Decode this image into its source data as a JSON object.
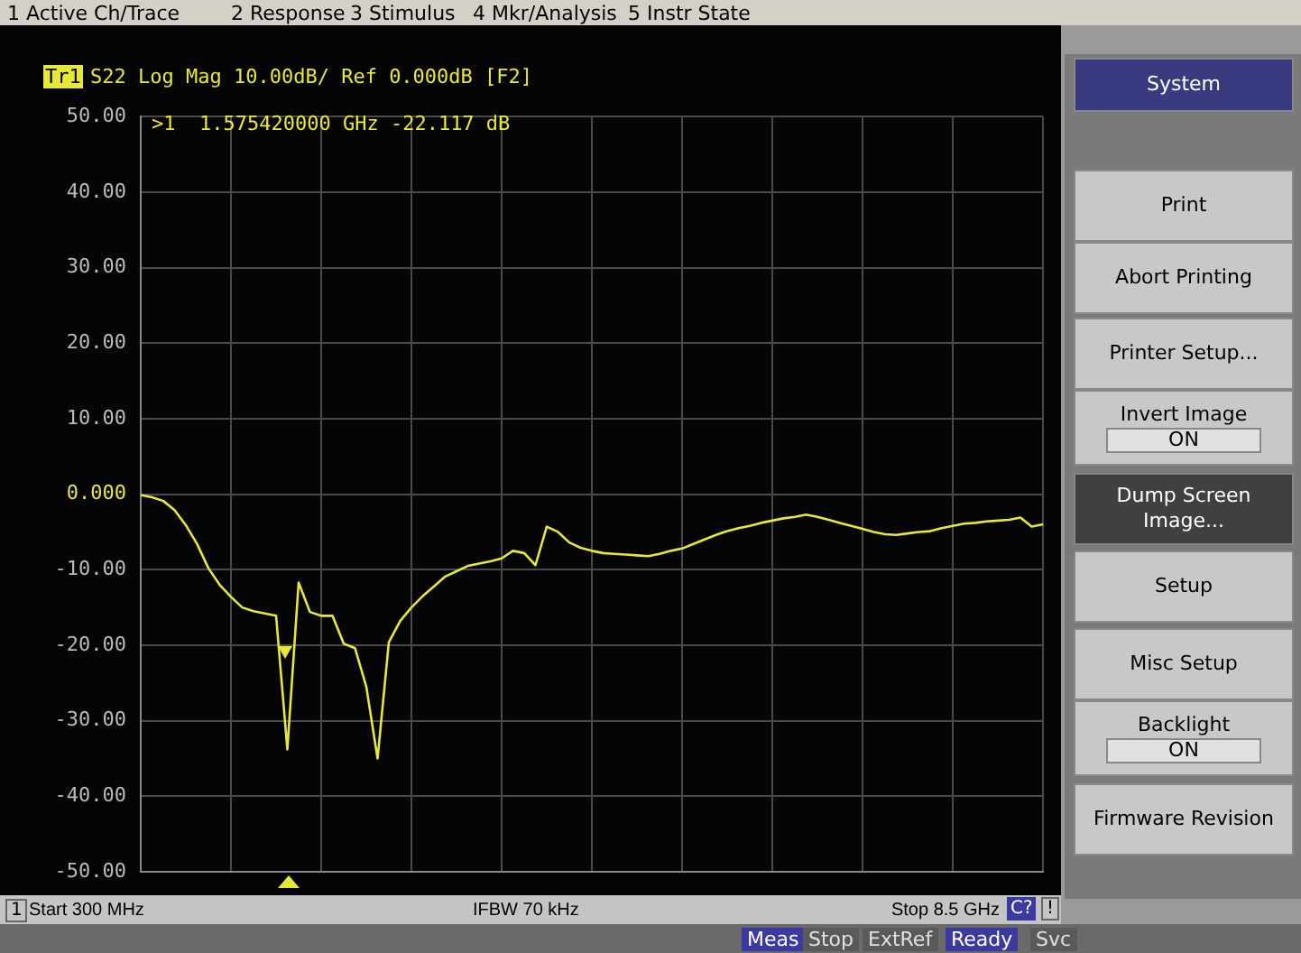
{
  "chart_data": {
    "type": "line",
    "title": "S22 Log Mag 10.00dB/ Ref 0.000dB [F2]",
    "categories": [
      null,
      null,
      null,
      null,
      null,
      null,
      null,
      null,
      null,
      null,
      null,
      null,
      null,
      null,
      null,
      null,
      null,
      null,
      null,
      null,
      null,
      null,
      null,
      null,
      null,
      null,
      null,
      null,
      null,
      null,
      null,
      null,
      null,
      null,
      null,
      null,
      null,
      null,
      null,
      null,
      null,
      null,
      null,
      null,
      null,
      null,
      null,
      null,
      null,
      null,
      null,
      null,
      null,
      null,
      null,
      null,
      null,
      null,
      null,
      null,
      null,
      null,
      null,
      null,
      null,
      null,
      null,
      null,
      null,
      null,
      null,
      null,
      null,
      null,
      null,
      null,
      null,
      null,
      null,
      null,
      null
    ],
    "series": [
      {
        "color": "#e8e838",
        "values": [
          -0.1,
          -0.4,
          -0.9,
          -2.1,
          -4.1,
          -6.6,
          -9.8,
          -12,
          -13.6,
          -15,
          -15.5,
          -15.8,
          -16.1,
          -33.8,
          -11.7,
          -15.6,
          -16.1,
          -16.1,
          -19.8,
          -20.4,
          -25.5,
          -35,
          -19.6,
          -16.8,
          -15,
          -13.5,
          -12.2,
          -10.9,
          -10.2,
          -9.5,
          -9.2,
          -8.9,
          -8.5,
          -7.5,
          -7.8,
          -9.4,
          -4.3,
          -5,
          -6.4,
          -7.1,
          -7.5,
          -7.8,
          -7.9,
          -8,
          -8.1,
          -8.2,
          -7.9,
          -7.5,
          -7.2,
          -6.6,
          -6,
          -5.4,
          -4.9,
          -4.5,
          -4.2,
          -3.8,
          -3.5,
          -3.2,
          -3,
          -2.7,
          -3,
          -3.4,
          -3.8,
          -4.2,
          -4.6,
          -5,
          -5.3,
          -5.4,
          -5.2,
          -5,
          -4.9,
          -4.5,
          -4.2,
          -3.9,
          -3.8,
          -3.6,
          -3.5,
          -3.4,
          -3.1,
          -4.3,
          -4
        ]
      }
    ],
    "ylim": [
      -50,
      50
    ],
    "yticks": [
      {
        "value": 50,
        "label": "50.00"
      },
      {
        "value": 40,
        "label": "40.00"
      },
      {
        "value": 30,
        "label": "30.00"
      },
      {
        "value": 20,
        "label": "20.00"
      },
      {
        "value": 10,
        "label": "10.00"
      },
      {
        "value": 0,
        "label": "0.000"
      },
      {
        "value": -10,
        "label": "-10.00"
      },
      {
        "value": -20,
        "label": "-20.00"
      },
      {
        "value": -30,
        "label": "-30.00"
      },
      {
        "value": -40,
        "label": "-40.00"
      },
      {
        "value": -50,
        "label": "-50.00"
      }
    ],
    "grid": true,
    "legend": false,
    "marker": "none",
    "line_style": "solid",
    "tick_labels": "y",
    "annotations": [
      "1 Active Ch/Trace",
      "2 Response",
      "3 Stimulus",
      "4 Mkr/Analysis",
      "5 Instr State",
      "Tr1",
      ">1  1.575420000 GHz -22.117 dB",
      "IFBW 70 kHz",
      "1",
      "C?",
      "!",
      "Meas",
      "Stop",
      "ExtRef",
      "Ready",
      "Svc",
      "System",
      "Print",
      "Abort Printing",
      "Printer Setup...",
      "Invert Image",
      "ON",
      "Dump Screen Image...",
      "Setup",
      "Misc Setup",
      "Backlight",
      "ON",
      "Firmware Revision",
      "Start 300 MHz",
      "Stop 8.5 GHz"
    ]
  }
}
